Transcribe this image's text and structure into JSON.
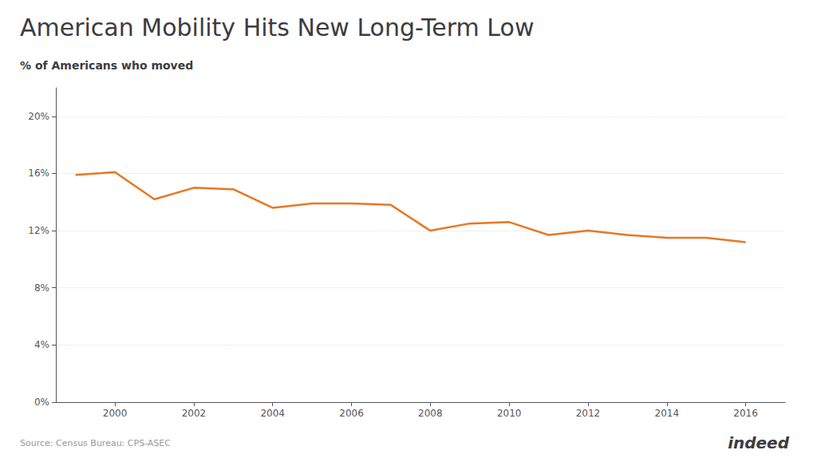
{
  "chart_data": {
    "type": "line",
    "title": "American Mobility Hits New Long-Term Low",
    "subtitle": "% of Americans who moved",
    "annotations": [
      "Source: Census Bureau: CPS-ASEC",
      "indeed"
    ],
    "x": [
      1999,
      2000,
      2001,
      2002,
      2003,
      2004,
      2005,
      2006,
      2007,
      2008,
      2009,
      2010,
      2011,
      2012,
      2013,
      2014,
      2015,
      2016
    ],
    "values": [
      15.9,
      16.1,
      14.2,
      15.0,
      14.9,
      13.6,
      13.9,
      13.9,
      13.8,
      12.0,
      12.5,
      12.6,
      11.7,
      12.0,
      11.7,
      11.5,
      11.5,
      11.2
    ],
    "color": "#e87722",
    "xlim": [
      1998.5,
      2017
    ],
    "xticks": [
      2000,
      2002,
      2004,
      2006,
      2008,
      2010,
      2012,
      2014,
      2016
    ],
    "ylim": [
      0,
      22
    ],
    "yticks": [
      {
        "value": 0,
        "label": "0%"
      },
      {
        "value": 4,
        "label": "4%"
      },
      {
        "value": 8,
        "label": "8%"
      },
      {
        "value": 12,
        "label": "12%"
      },
      {
        "value": 16,
        "label": "16%"
      },
      {
        "value": 20,
        "label": "20%"
      }
    ],
    "grid": true
  }
}
